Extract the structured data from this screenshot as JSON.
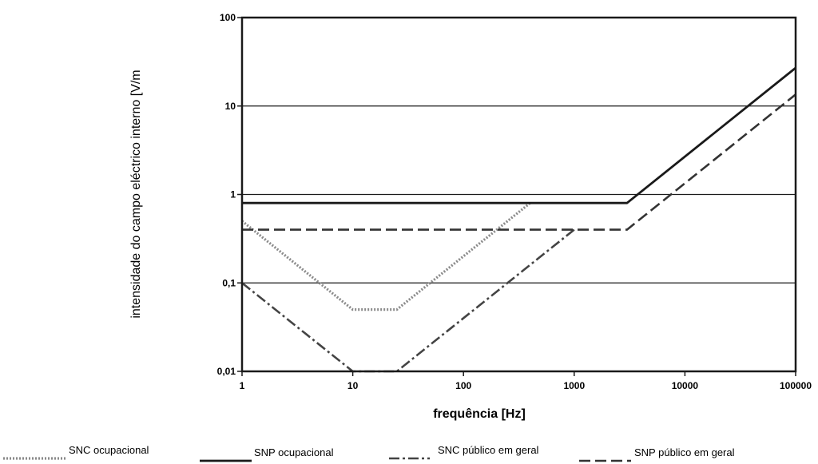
{
  "chart_data": {
    "type": "line",
    "xlabel": "frequência [Hz]",
    "ylabel": "intensidade do campo eléctrico interno [V/m",
    "x_scale": "log",
    "y_scale": "log",
    "xlim": [
      1,
      100000
    ],
    "ylim": [
      0.01,
      100
    ],
    "x_ticks": [
      "1",
      "10",
      "100",
      "1000",
      "10000",
      "100000"
    ],
    "y_ticks": [
      "0,01",
      "0,1",
      "1",
      "10",
      "100"
    ],
    "grid": "horizontal",
    "legend_position": "bottom",
    "series": [
      {
        "name": "SNC ocupacional",
        "style": "dotted",
        "color": "#8a8a8a",
        "points": [
          [
            1,
            0.5
          ],
          [
            10,
            0.05
          ],
          [
            25,
            0.05
          ],
          [
            400,
            0.8
          ]
        ]
      },
      {
        "name": "SNP ocupacional",
        "style": "solid",
        "color": "#1a1a1a",
        "points": [
          [
            1,
            0.8
          ],
          [
            3000,
            0.8
          ],
          [
            100000,
            27
          ]
        ]
      },
      {
        "name": "SNC público em geral",
        "style": "dashdot",
        "color": "#444444",
        "points": [
          [
            1,
            0.1
          ],
          [
            10,
            0.01
          ],
          [
            25,
            0.01
          ],
          [
            1000,
            0.4
          ]
        ]
      },
      {
        "name": "SNP público em geral",
        "style": "dashed",
        "color": "#333333",
        "points": [
          [
            1,
            0.4
          ],
          [
            3000,
            0.4
          ],
          [
            100000,
            13.5
          ]
        ]
      }
    ]
  }
}
